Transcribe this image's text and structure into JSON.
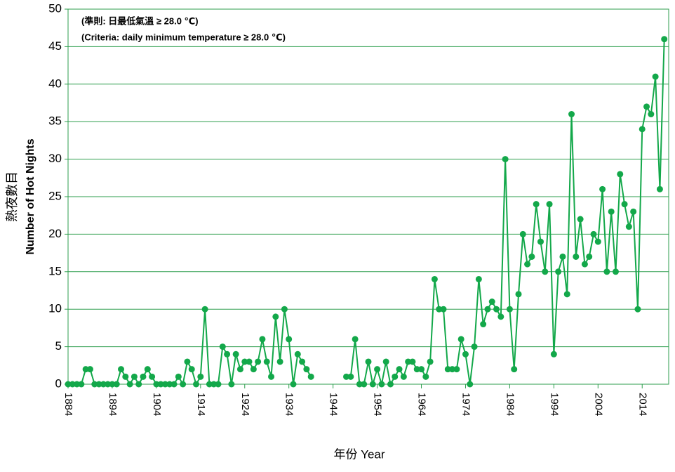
{
  "chart_data": {
    "type": "line",
    "annotations": [
      "(準則: 日最低氣溫 ≥ 28.0 ℃)",
      "(Criteria: daily minimum temperature ≥ 28.0 ℃)"
    ],
    "y_label": [
      "熱夜數目",
      "Number of Hot Nights"
    ],
    "x_label": "年份  Year",
    "x": [
      1884,
      1885,
      1886,
      1887,
      1888,
      1889,
      1890,
      1891,
      1892,
      1893,
      1894,
      1895,
      1896,
      1897,
      1898,
      1899,
      1900,
      1901,
      1902,
      1903,
      1904,
      1905,
      1906,
      1907,
      1908,
      1909,
      1910,
      1911,
      1912,
      1913,
      1914,
      1915,
      1916,
      1917,
      1918,
      1919,
      1920,
      1921,
      1922,
      1923,
      1924,
      1925,
      1926,
      1927,
      1928,
      1929,
      1930,
      1931,
      1932,
      1933,
      1934,
      1935,
      1936,
      1937,
      1938,
      1939,
      1940,
      1941,
      1942,
      1943,
      1944,
      1945,
      1946,
      1947,
      1948,
      1949,
      1950,
      1951,
      1952,
      1953,
      1954,
      1955,
      1956,
      1957,
      1958,
      1959,
      1960,
      1961,
      1962,
      1963,
      1964,
      1965,
      1966,
      1967,
      1968,
      1969,
      1970,
      1971,
      1972,
      1973,
      1974,
      1975,
      1976,
      1977,
      1978,
      1979,
      1980,
      1981,
      1982,
      1983,
      1984,
      1985,
      1986,
      1987,
      1988,
      1989,
      1990,
      1991,
      1992,
      1993,
      1994,
      1995,
      1996,
      1997,
      1998,
      1999,
      2000,
      2001,
      2002,
      2003,
      2004,
      2005,
      2006,
      2007,
      2008,
      2009,
      2010,
      2011,
      2012,
      2013,
      2014,
      2015,
      2016,
      2017,
      2018,
      2019
    ],
    "series": [
      {
        "name": "Number of Hot Nights",
        "color": "#13a84a",
        "values": [
          0,
          0,
          0,
          0,
          2,
          2,
          0,
          0,
          0,
          0,
          0,
          0,
          2,
          1,
          0,
          1,
          0,
          1,
          2,
          1,
          0,
          0,
          0,
          0,
          0,
          1,
          0,
          3,
          2,
          0,
          1,
          10,
          0,
          0,
          0,
          5,
          4,
          0,
          4,
          2,
          3,
          3,
          2,
          3,
          6,
          3,
          1,
          9,
          3,
          10,
          6,
          0,
          4,
          3,
          2,
          1,
          null,
          null,
          null,
          null,
          null,
          null,
          null,
          1,
          1,
          6,
          0,
          0,
          3,
          0,
          2,
          0,
          3,
          0,
          1,
          2,
          1,
          3,
          3,
          2,
          2,
          1,
          3,
          14,
          10,
          10,
          2,
          2,
          2,
          6,
          4,
          0,
          5,
          14,
          8,
          10,
          11,
          10,
          9,
          30,
          10,
          2,
          12,
          20,
          16,
          17,
          24,
          19,
          15,
          24,
          4,
          15,
          17,
          12,
          36,
          17,
          22,
          16,
          17,
          20,
          19,
          26,
          15,
          23,
          15,
          28,
          24,
          21,
          23,
          10,
          34,
          37,
          36,
          41,
          26,
          46
        ]
      }
    ],
    "xlim": [
      1884,
      2020
    ],
    "ylim": [
      0,
      50
    ],
    "xticks": [
      1884,
      1894,
      1904,
      1914,
      1924,
      1934,
      1944,
      1954,
      1964,
      1974,
      1984,
      1994,
      2004,
      2014
    ],
    "yticks": [
      0,
      5,
      10,
      15,
      20,
      25,
      30,
      35,
      40,
      45,
      50
    ],
    "grid": true
  }
}
